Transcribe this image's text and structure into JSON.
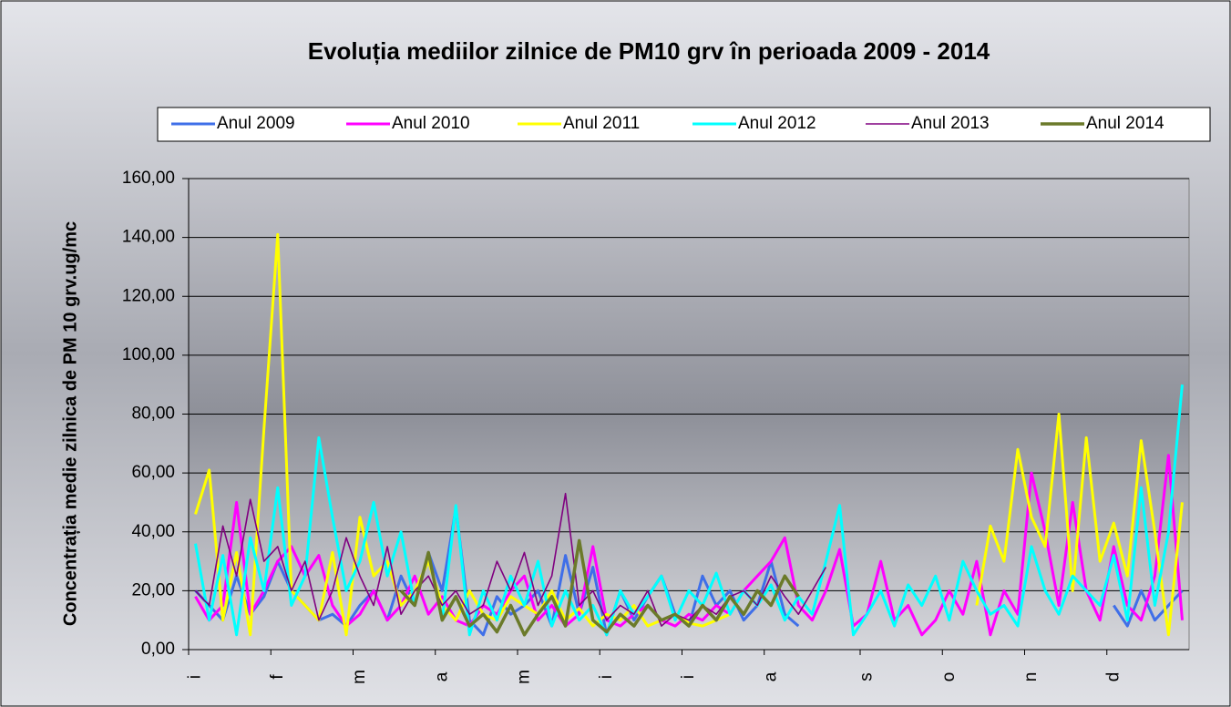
{
  "chart_data": {
    "type": "line",
    "title": "Evoluția mediilor zilnice de PM10 grv în perioada 2009 - 2014",
    "y_label": "Concentrația medie zilnica de PM 10 grv.ug/mc",
    "legend": "top",
    "grid": true,
    "ylim": [
      0,
      160
    ],
    "yticks": [
      {
        "value": 0,
        "label": "0,00"
      },
      {
        "value": 20,
        "label": "20,00"
      },
      {
        "value": 40,
        "label": "40,00"
      },
      {
        "value": 60,
        "label": "60,00"
      },
      {
        "value": 80,
        "label": "80,00"
      },
      {
        "value": 100,
        "label": "100,00"
      },
      {
        "value": 120,
        "label": "120,00"
      },
      {
        "value": 140,
        "label": "140,00"
      },
      {
        "value": 160,
        "label": "160,00"
      }
    ],
    "categories": [
      "i",
      null,
      null,
      null,
      null,
      null,
      "f",
      null,
      null,
      null,
      null,
      null,
      "m",
      null,
      null,
      null,
      null,
      null,
      "a",
      null,
      null,
      null,
      null,
      null,
      "m",
      null,
      null,
      null,
      null,
      null,
      "i",
      null,
      null,
      null,
      null,
      null,
      "i",
      null,
      null,
      null,
      null,
      null,
      "a",
      null,
      null,
      null,
      null,
      null,
      null,
      "s",
      null,
      null,
      null,
      null,
      null,
      "o",
      null,
      null,
      null,
      null,
      null,
      "n",
      null,
      null,
      null,
      null,
      null,
      "d",
      null,
      null,
      null,
      null,
      null
    ],
    "series": [
      {
        "name": "Anul 2009",
        "color": "#3f6fe8",
        "width": 3,
        "values": [
          20,
          15,
          10,
          25,
          12,
          18,
          30,
          20,
          15,
          10,
          12,
          8,
          15,
          20,
          10,
          25,
          15,
          33,
          20,
          48,
          10,
          5,
          18,
          12,
          15,
          20,
          8,
          32,
          12,
          28,
          5,
          20,
          10,
          18,
          25,
          12,
          8,
          25,
          15,
          20,
          10,
          15,
          30,
          12,
          8,
          null,
          null,
          null,
          null,
          null,
          null,
          null,
          null,
          null,
          null,
          null,
          null,
          null,
          null,
          null,
          null,
          null,
          null,
          null,
          null,
          null,
          null,
          15,
          8,
          20,
          10,
          15,
          20
        ]
      },
      {
        "name": "Anul 2010",
        "color": "#ff00ff",
        "width": 3,
        "values": [
          18,
          10,
          15,
          50,
          12,
          20,
          30,
          35,
          25,
          32,
          15,
          8,
          12,
          20,
          10,
          15,
          25,
          12,
          18,
          10,
          8,
          15,
          12,
          20,
          25,
          10,
          15,
          8,
          12,
          35,
          10,
          8,
          12,
          15,
          10,
          8,
          12,
          10,
          15,
          12,
          20,
          25,
          30,
          38,
          15,
          10,
          20,
          34,
          8,
          12,
          30,
          10,
          15,
          5,
          10,
          20,
          12,
          30,
          5,
          20,
          12,
          60,
          40,
          15,
          50,
          20,
          10,
          35,
          15,
          10,
          25,
          66,
          10
        ]
      },
      {
        "name": "Anul 2011",
        "color": "#ffff00",
        "width": 3,
        "values": [
          46,
          61,
          10,
          33,
          5,
          75,
          141,
          20,
          15,
          10,
          33,
          5,
          45,
          25,
          30,
          15,
          20,
          30,
          15,
          10,
          20,
          12,
          10,
          18,
          15,
          12,
          20,
          10,
          14,
          8,
          12,
          10,
          15,
          8,
          10,
          12,
          9,
          8,
          10,
          12,
          null,
          null,
          null,
          null,
          null,
          null,
          null,
          null,
          null,
          null,
          null,
          null,
          null,
          null,
          null,
          null,
          null,
          15,
          42,
          30,
          68,
          45,
          35,
          80,
          20,
          72,
          30,
          43,
          25,
          71,
          40,
          5,
          50
        ]
      },
      {
        "name": "Anul 2012",
        "color": "#00ffff",
        "width": 3,
        "values": [
          36,
          10,
          32,
          5,
          38,
          20,
          55,
          15,
          25,
          72,
          45,
          20,
          30,
          50,
          25,
          40,
          15,
          33,
          10,
          49,
          5,
          20,
          10,
          25,
          15,
          30,
          8,
          20,
          10,
          15,
          5,
          20,
          12,
          18,
          25,
          10,
          20,
          15,
          26,
          12,
          20,
          15,
          22,
          10,
          18,
          12,
          30,
          49,
          5,
          12,
          20,
          8,
          22,
          15,
          25,
          10,
          30,
          20,
          12,
          15,
          8,
          35,
          20,
          12,
          25,
          20,
          15,
          32,
          10,
          55,
          15,
          40,
          90
        ]
      },
      {
        "name": "Anul 2013",
        "color": "#800080",
        "width": 1.6,
        "values": [
          20,
          15,
          42,
          25,
          51,
          30,
          35,
          20,
          30,
          10,
          20,
          38,
          25,
          15,
          35,
          12,
          20,
          25,
          15,
          20,
          12,
          15,
          30,
          20,
          33,
          15,
          25,
          53,
          15,
          20,
          10,
          15,
          12,
          20,
          8,
          12,
          10,
          15,
          12,
          18,
          20,
          15,
          25,
          18,
          12,
          20,
          28,
          null,
          null,
          null,
          null,
          null,
          null,
          null,
          null,
          null,
          null,
          null,
          null,
          null,
          null,
          null,
          null,
          null,
          null,
          null,
          null,
          null,
          null,
          null,
          null,
          null,
          null
        ]
      },
      {
        "name": "Anul 2014",
        "color": "#6b7a2a",
        "width": 3.5,
        "values": [
          null,
          null,
          null,
          null,
          null,
          null,
          null,
          null,
          null,
          null,
          null,
          null,
          null,
          null,
          null,
          20,
          15,
          33,
          10,
          18,
          8,
          12,
          6,
          15,
          5,
          12,
          18,
          8,
          37,
          10,
          6,
          12,
          8,
          15,
          10,
          12,
          8,
          15,
          10,
          18,
          12,
          20,
          15,
          25,
          18,
          null,
          null,
          null,
          null,
          null,
          null,
          null,
          null,
          null,
          null,
          null,
          null,
          null,
          null,
          null,
          null,
          null,
          null,
          null,
          null,
          null,
          null,
          null,
          null,
          null,
          null,
          null,
          null
        ]
      }
    ]
  }
}
